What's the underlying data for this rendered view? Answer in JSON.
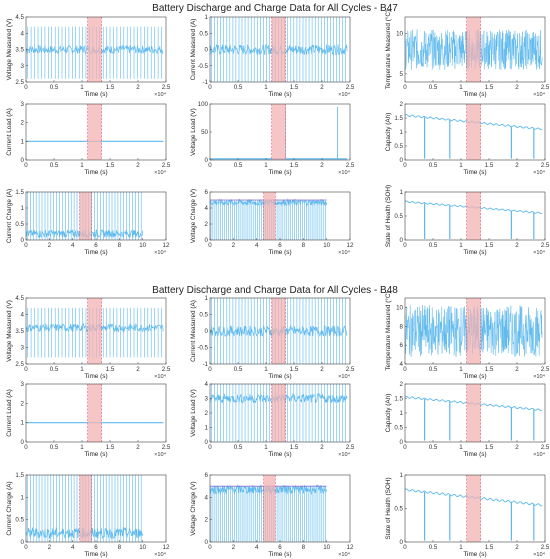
{
  "figures": [
    {
      "title": "Battery Discharge and Charge Data for All Cycles - B47",
      "panels": [
        {
          "id": "b47-voltage-measured",
          "ylabel": "Voltage Measured (V)",
          "xlabel": "Time (s)",
          "type": "dense",
          "ylim": [
            2.5,
            4.5
          ],
          "yticks": [
            "2.5",
            "3",
            "3.5",
            "4",
            "4.5"
          ],
          "xlim": [
            0,
            2.5
          ],
          "xticks": [
            "0",
            "0.5",
            "1",
            "1.5",
            "2",
            "2.5"
          ],
          "xexp": "×10⁴",
          "band": [
            1.1,
            1.35
          ],
          "baseline": 3.5,
          "spikeTop": 4.2,
          "spikeBottom": 2.6,
          "nspikes": 40
        },
        {
          "id": "b47-current-measured",
          "ylabel": "Current Measured (A)",
          "xlabel": "Time (s)",
          "type": "dense",
          "ylim": [
            -1,
            1
          ],
          "yticks": [
            "-1",
            "-0.5",
            "0",
            "0.5",
            "1"
          ],
          "xlim": [
            0,
            2.5
          ],
          "xticks": [
            "0",
            "0.5",
            "1",
            "1.5",
            "2",
            "2.5"
          ],
          "xexp": "×10⁴",
          "band": [
            1.1,
            1.35
          ],
          "baseline": 0,
          "spikeTop": 1,
          "spikeBottom": -1,
          "nspikes": 45
        },
        {
          "id": "b47-temperature-measured",
          "ylabel": "Temperature Measured (°C)",
          "xlabel": "Time (s)",
          "type": "noise",
          "ylim": [
            4,
            12
          ],
          "yticks": [
            "5",
            "10"
          ],
          "xlim": [
            0,
            2.5
          ],
          "xticks": [
            "0",
            "0.5",
            "1",
            "1.5",
            "2",
            "2.5"
          ],
          "xexp": "×10⁴",
          "band": [
            1.1,
            1.35
          ],
          "baseline": 8,
          "spikeTop": 11,
          "spikeBottom": 6,
          "nspikes": 0
        },
        {
          "id": "b47-current-load",
          "ylabel": "Current Load (A)",
          "xlabel": "Time (s)",
          "type": "flat",
          "ylim": [
            0,
            3
          ],
          "yticks": [
            "0",
            "1",
            "2",
            "3"
          ],
          "xlim": [
            0,
            2.5
          ],
          "xticks": [
            "0",
            "0.5",
            "1",
            "1.5",
            "2",
            "2.5"
          ],
          "xexp": "×10⁴",
          "band": [
            1.1,
            1.35
          ],
          "baseline": 1,
          "spikeTop": 1,
          "spikeBottom": 0,
          "nspikes": 0
        },
        {
          "id": "b47-voltage-load",
          "ylabel": "Voltage Load (V)",
          "xlabel": "Time (s)",
          "type": "flat",
          "ylim": [
            0,
            100
          ],
          "yticks": [
            "0",
            "50",
            "100"
          ],
          "xlim": [
            0,
            2.5
          ],
          "xticks": [
            "0",
            "0.5",
            "1",
            "1.5",
            "2",
            "2.5"
          ],
          "xexp": "×10⁴",
          "band": [
            1.1,
            1.35
          ],
          "baseline": 2,
          "spikeTop": 95,
          "spikeBottom": 0,
          "nspikes": 2
        },
        {
          "id": "b47-capacity",
          "ylabel": "Capacity (Ah)",
          "xlabel": "Time (s)",
          "type": "trend",
          "ylim": [
            0,
            2
          ],
          "yticks": [
            "0",
            "0.5",
            "1",
            "1.5",
            "2"
          ],
          "xlim": [
            0,
            2.5
          ],
          "xticks": [
            "0",
            "0.5",
            "1",
            "1.5",
            "2",
            "2.5"
          ],
          "xexp": "×10⁴",
          "band": [
            1.1,
            1.35
          ],
          "trendStart": 1.6,
          "trendEnd": 1.1,
          "dips": [
            0.35,
            0.8,
            1.9,
            2.3
          ],
          "dipBottom": 0.05
        },
        {
          "id": "b47-current-charge",
          "ylabel": "Current Charge (A)",
          "xlabel": "Time (s)",
          "type": "charge",
          "ylim": [
            0,
            1.5
          ],
          "yticks": [
            "0",
            "0.5",
            "1",
            "1.5"
          ],
          "xlim": [
            0,
            12
          ],
          "xticks": [
            "0",
            "2",
            "4",
            "6",
            "8",
            "10",
            "12"
          ],
          "xexp": "×10⁴",
          "band": [
            4.6,
            5.6
          ],
          "dataEnd": 10,
          "baseline": 0.2,
          "spikeTop": 1.5,
          "spikeBottom": 0,
          "nspikes": 40
        },
        {
          "id": "b47-voltage-charge",
          "ylabel": "Voltage Charge (V)",
          "xlabel": "Time (s)",
          "type": "vcharge",
          "ylim": [
            0,
            6
          ],
          "yticks": [
            "0",
            "2",
            "4",
            "6"
          ],
          "xlim": [
            0,
            12
          ],
          "xticks": [
            "0",
            "2",
            "4",
            "6",
            "8",
            "10",
            "12"
          ],
          "xexp": "×10⁴",
          "band": [
            4.6,
            5.6
          ],
          "dataEnd": 10,
          "baseline": 4.7,
          "spikeTop": 5,
          "spikeBottom": 0,
          "nspikes": 60
        },
        {
          "id": "b47-state-of-health",
          "ylabel": "State of Health (SOH)",
          "xlabel": "Time (s)",
          "type": "trend",
          "ylim": [
            0,
            1
          ],
          "yticks": [
            "0",
            "0.5",
            "1"
          ],
          "xlim": [
            0,
            2.5
          ],
          "xticks": [
            "0",
            "0.5",
            "1",
            "1.5",
            "2",
            "2.5"
          ],
          "xexp": "×10⁴",
          "band": [
            1.1,
            1.35
          ],
          "trendStart": 0.8,
          "trendEnd": 0.56,
          "dips": [
            0.35,
            0.8,
            1.9,
            2.3
          ],
          "dipBottom": 0.02
        }
      ]
    },
    {
      "title": "Battery Discharge and Charge Data for All Cycles - B48",
      "panels": [
        {
          "id": "b48-voltage-measured",
          "ylabel": "Voltage Measured (V)",
          "xlabel": "Time (s)",
          "type": "dense",
          "ylim": [
            2.5,
            4.5
          ],
          "yticks": [
            "2.5",
            "3",
            "3.5",
            "4",
            "4.5"
          ],
          "xlim": [
            0,
            2.5
          ],
          "xticks": [
            "0",
            "0.5",
            "1",
            "1.5",
            "2",
            "2.5"
          ],
          "xexp": "×10⁴",
          "band": [
            1.1,
            1.35
          ],
          "baseline": 3.6,
          "spikeTop": 4.2,
          "spikeBottom": 2.7,
          "nspikes": 40
        },
        {
          "id": "b48-current-measured",
          "ylabel": "Current Measured (A)",
          "xlabel": "Time (s)",
          "type": "dense",
          "ylim": [
            -1,
            1
          ],
          "yticks": [
            "-1",
            "-0.5",
            "0",
            "0.5",
            "1"
          ],
          "xlim": [
            0,
            2.5
          ],
          "xticks": [
            "0",
            "0.5",
            "1",
            "1.5",
            "2",
            "2.5"
          ],
          "xexp": "×10⁴",
          "band": [
            1.1,
            1.35
          ],
          "baseline": 0,
          "spikeTop": 1,
          "spikeBottom": -1,
          "nspikes": 45
        },
        {
          "id": "b48-temperature-measured",
          "ylabel": "Temperature Measured (°C)",
          "xlabel": "Time (s)",
          "type": "noise",
          "ylim": [
            4,
            11
          ],
          "yticks": [
            "4",
            "6",
            "8",
            "10"
          ],
          "xlim": [
            0,
            2.5
          ],
          "xticks": [
            "0",
            "0.5",
            "1",
            "1.5",
            "2",
            "2.5"
          ],
          "xexp": "×10⁴",
          "band": [
            1.1,
            1.35
          ],
          "baseline": 7.5,
          "spikeTop": 10.5,
          "spikeBottom": 5,
          "nspikes": 0
        },
        {
          "id": "b48-current-load",
          "ylabel": "Current Load (A)",
          "xlabel": "Time (s)",
          "type": "flat",
          "ylim": [
            0,
            3
          ],
          "yticks": [
            "0",
            "1",
            "2",
            "3"
          ],
          "xlim": [
            0,
            2.5
          ],
          "xticks": [
            "0",
            "0.5",
            "1",
            "1.5",
            "2",
            "2.5"
          ],
          "xexp": "×10⁴",
          "band": [
            1.1,
            1.35
          ],
          "baseline": 1,
          "spikeTop": 1,
          "spikeBottom": 0,
          "nspikes": 0
        },
        {
          "id": "b48-voltage-load",
          "ylabel": "Voltage Load (V)",
          "xlabel": "Time (s)",
          "type": "dense",
          "ylim": [
            0,
            4
          ],
          "yticks": [
            "0",
            "1",
            "2",
            "3",
            "4"
          ],
          "xlim": [
            0,
            2.5
          ],
          "xticks": [
            "0",
            "0.5",
            "1",
            "1.5",
            "2",
            "2.5"
          ],
          "xexp": "×10⁴",
          "band": [
            1.1,
            1.35
          ],
          "baseline": 3,
          "spikeTop": 4,
          "spikeBottom": 0,
          "nspikes": 45
        },
        {
          "id": "b48-capacity",
          "ylabel": "Capacity (Ah)",
          "xlabel": "Time (s)",
          "type": "trend",
          "ylim": [
            0,
            2
          ],
          "yticks": [
            "0",
            "0.5",
            "1",
            "1.5",
            "2"
          ],
          "xlim": [
            0,
            2.5
          ],
          "xticks": [
            "0",
            "0.5",
            "1",
            "1.5",
            "2",
            "2.5"
          ],
          "xexp": "×10⁴",
          "band": [
            1.1,
            1.35
          ],
          "trendStart": 1.55,
          "trendEnd": 1.1,
          "dips": [
            0.35,
            0.8,
            1.9,
            2.3
          ],
          "dipBottom": 0.05
        },
        {
          "id": "b48-current-charge",
          "ylabel": "Current Charge (A)",
          "xlabel": "Time (s)",
          "type": "charge",
          "ylim": [
            0,
            1.5
          ],
          "yticks": [
            "0",
            "0.5",
            "1",
            "1.5"
          ],
          "xlim": [
            0,
            12
          ],
          "xticks": [
            "0",
            "2",
            "4",
            "6",
            "8",
            "10",
            "12"
          ],
          "xexp": "×10⁴",
          "band": [
            4.6,
            5.6
          ],
          "dataEnd": 10,
          "baseline": 0.2,
          "spikeTop": 1.5,
          "spikeBottom": 0,
          "nspikes": 40
        },
        {
          "id": "b48-voltage-charge",
          "ylabel": "Voltage Charge (V)",
          "xlabel": "Time (s)",
          "type": "vcharge",
          "ylim": [
            0,
            6
          ],
          "yticks": [
            "0",
            "2",
            "4",
            "6"
          ],
          "xlim": [
            0,
            12
          ],
          "xticks": [
            "0",
            "2",
            "4",
            "6",
            "8",
            "10",
            "12"
          ],
          "xexp": "×10⁴",
          "band": [
            4.6,
            5.6
          ],
          "dataEnd": 10,
          "baseline": 4.7,
          "spikeTop": 5,
          "spikeBottom": 0,
          "nspikes": 60
        },
        {
          "id": "b48-state-of-health",
          "ylabel": "State of Health (SOH)",
          "xlabel": "Time (s)",
          "type": "trend",
          "ylim": [
            0,
            1
          ],
          "yticks": [
            "0",
            "0.5",
            "1"
          ],
          "xlim": [
            0,
            2.5
          ],
          "xticks": [
            "0",
            "0.5",
            "1",
            "1.5",
            "2",
            "2.5"
          ],
          "xexp": "×10⁴",
          "band": [
            1.1,
            1.35
          ],
          "trendStart": 0.78,
          "trendEnd": 0.55,
          "dips": [
            0.35,
            0.8,
            1.9,
            2.3
          ],
          "dipBottom": 0.02
        }
      ]
    }
  ],
  "colors": {
    "line": "#5db9ee",
    "band": "#f3b1b1",
    "bandEdge": "#d9607a",
    "axis": "#444444"
  }
}
